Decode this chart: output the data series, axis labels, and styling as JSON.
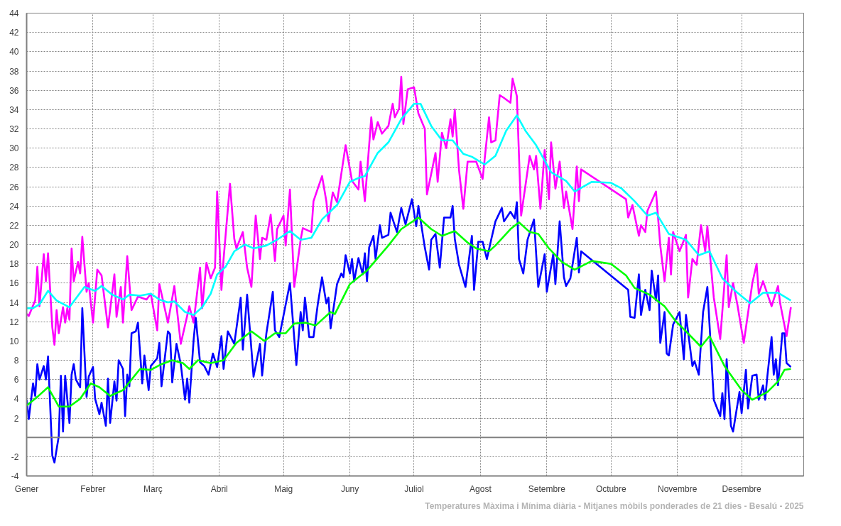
{
  "chart_data": {
    "type": "line",
    "title": "Temperatures Màxima i Mínima diària - Mitjanes mòbils ponderades de 21 dies - Besalú - 2025",
    "xlim": [
      "2025-01-01",
      "2025-12-30"
    ],
    "xticks": [
      {
        "value": "2025-01-01",
        "label": "Gener"
      },
      {
        "value": "2025-02-01",
        "label": "Febrer"
      },
      {
        "value": "2025-03-01",
        "label": "Març"
      },
      {
        "value": "2025-04-01",
        "label": "Abril"
      },
      {
        "value": "2025-05-01",
        "label": "Maig"
      },
      {
        "value": "2025-06-01",
        "label": "Juny"
      },
      {
        "value": "2025-07-01",
        "label": "Juliol"
      },
      {
        "value": "2025-08-01",
        "label": "Agost"
      },
      {
        "value": "2025-09-01",
        "label": "Setembre"
      },
      {
        "value": "2025-10-01",
        "label": "Octubre"
      },
      {
        "value": "2025-11-01",
        "label": "Novembre"
      },
      {
        "value": "2025-12-01",
        "label": "Desembre"
      }
    ],
    "ylim": [
      -4,
      44
    ],
    "yticks": [
      -4,
      -2,
      2,
      4,
      6,
      8,
      10,
      12,
      14,
      16,
      18,
      20,
      22,
      24,
      26,
      28,
      30,
      32,
      34,
      36,
      38,
      40,
      42,
      44
    ],
    "grid": true,
    "line_style": "solid",
    "ref_lines": [
      {
        "axis": "y",
        "value": 0
      }
    ],
    "series": [
      {
        "color": "#ff00ff",
        "x": [
          "2025-01-01",
          "2025-01-02",
          "2025-01-05",
          "2025-01-06",
          "2025-01-07",
          "2025-01-09",
          "2025-01-10",
          "2025-01-11",
          "2025-01-13",
          "2025-01-14",
          "2025-01-15",
          "2025-01-16",
          "2025-01-18",
          "2025-01-19",
          "2025-01-20",
          "2025-01-21",
          "2025-01-22",
          "2025-01-23",
          "2025-01-25",
          "2025-01-26",
          "2025-01-27",
          "2025-01-29",
          "2025-01-30",
          "2025-02-01",
          "2025-02-03",
          "2025-02-05",
          "2025-02-08",
          "2025-02-11",
          "2025-02-12",
          "2025-02-14",
          "2025-02-15",
          "2025-02-17",
          "2025-02-19",
          "2025-02-22",
          "2025-02-26",
          "2025-02-28",
          "2025-03-03",
          "2025-03-04",
          "2025-03-08",
          "2025-03-11",
          "2025-03-14",
          "2025-03-18",
          "2025-03-20",
          "2025-03-23",
          "2025-03-24",
          "2025-03-26",
          "2025-03-28",
          "2025-03-30",
          "2025-03-31",
          "2025-04-02",
          "2025-04-03",
          "2025-04-06",
          "2025-04-08",
          "2025-04-09",
          "2025-04-12",
          "2025-04-14",
          "2025-04-16",
          "2025-04-18",
          "2025-04-20",
          "2025-04-21",
          "2025-04-23",
          "2025-04-25",
          "2025-04-27",
          "2025-04-28",
          "2025-05-01",
          "2025-05-02",
          "2025-05-04",
          "2025-05-06",
          "2025-05-09",
          "2025-05-10",
          "2025-05-14",
          "2025-05-15",
          "2025-05-19",
          "2025-05-21",
          "2025-05-22",
          "2025-05-24",
          "2025-05-26",
          "2025-05-30",
          "2025-06-02",
          "2025-06-05",
          "2025-06-06",
          "2025-06-08",
          "2025-06-11",
          "2025-06-12",
          "2025-06-14",
          "2025-06-16",
          "2025-06-19",
          "2025-06-21",
          "2025-06-22",
          "2025-06-24",
          "2025-06-25",
          "2025-06-26",
          "2025-06-28",
          "2025-07-01",
          "2025-07-03",
          "2025-07-06",
          "2025-07-07",
          "2025-07-11",
          "2025-07-12",
          "2025-07-14",
          "2025-07-16",
          "2025-07-18",
          "2025-07-19",
          "2025-07-20",
          "2025-07-22",
          "2025-07-24",
          "2025-07-26",
          "2025-07-30",
          "2025-08-02",
          "2025-08-05",
          "2025-08-06",
          "2025-08-08",
          "2025-08-10",
          "2025-08-12",
          "2025-08-15",
          "2025-08-16",
          "2025-08-18",
          "2025-08-20",
          "2025-08-24",
          "2025-08-26",
          "2025-08-27",
          "2025-08-29",
          "2025-08-31",
          "2025-09-02",
          "2025-09-03",
          "2025-09-05",
          "2025-09-07",
          "2025-09-09",
          "2025-09-10",
          "2025-09-13",
          "2025-09-15",
          "2025-09-16",
          "2025-09-17",
          "2025-10-08",
          "2025-10-09",
          "2025-10-11",
          "2025-10-14",
          "2025-10-15",
          "2025-10-17",
          "2025-10-18",
          "2025-10-22",
          "2025-10-24",
          "2025-10-26",
          "2025-10-28",
          "2025-10-29",
          "2025-10-30",
          "2025-11-02",
          "2025-11-05",
          "2025-11-06",
          "2025-11-08",
          "2025-11-10",
          "2025-11-12",
          "2025-11-14",
          "2025-11-15",
          "2025-11-18",
          "2025-11-21",
          "2025-11-24",
          "2025-11-25",
          "2025-11-27",
          "2025-11-29",
          "2025-12-02",
          "2025-12-06",
          "2025-12-08",
          "2025-12-09",
          "2025-12-11",
          "2025-12-15",
          "2025-12-18",
          "2025-12-19",
          "2025-12-22",
          "2025-12-24"
        ],
        "values": [
          12.8,
          12.6,
          14.2,
          17.7,
          13.6,
          19.0,
          16.2,
          19.1,
          11.4,
          9.6,
          13.2,
          10.8,
          13.5,
          11.9,
          13.4,
          12.2,
          19.6,
          16.2,
          18.2,
          17.0,
          20.8,
          15.1,
          16.0,
          11.9,
          17.4,
          16.8,
          11.4,
          16.9,
          12.5,
          15.6,
          11.9,
          18.8,
          13.2,
          14.6,
          14.3,
          14.9,
          11.1,
          15.9,
          11.9,
          15.7,
          9.7,
          13.6,
          11.9,
          17.6,
          13.4,
          18.1,
          16.5,
          17.6,
          25.5,
          15.3,
          18.5,
          26.3,
          20.6,
          19.6,
          21.3,
          17.6,
          15.6,
          23.0,
          18.5,
          20.7,
          20.5,
          23.1,
          18.3,
          21.6,
          23.0,
          19.9,
          25.7,
          15.6,
          20.5,
          21.7,
          21.3,
          24.5,
          27.1,
          24.5,
          22.4,
          25.4,
          24.4,
          30.3,
          26.6,
          25.7,
          28.6,
          24.5,
          33.2,
          30.9,
          32.7,
          31.5,
          32.3,
          34.6,
          33.2,
          34.1,
          37.4,
          32.5,
          36.1,
          36.3,
          33.6,
          32.0,
          25.2,
          29.5,
          26.5,
          31.6,
          30.0,
          33.0,
          31.2,
          34.0,
          27.7,
          23.7,
          28.6,
          28.6,
          26.8,
          33.2,
          30.6,
          30.8,
          35.5,
          35.2,
          34.7,
          37.2,
          35.4,
          23.0,
          29.2,
          27.8,
          29.2,
          23.7,
          29.8,
          24.7,
          30.6,
          25.8,
          28.6,
          23.8,
          25.5,
          21.6,
          28.1,
          24.5,
          27.8,
          24.7,
          22.8,
          24.1,
          20.9,
          22.0,
          21.3,
          23.5,
          25.5,
          19.9,
          16.2,
          20.7,
          16.9,
          21.3,
          19.3,
          21.0,
          14.5,
          18.5,
          17.9,
          22.0,
          19.3,
          21.9,
          14.5,
          10.2,
          18.9,
          13.5,
          16.0,
          13.8,
          9.8,
          16.0,
          18.0,
          14.9,
          16.2,
          13.6,
          15.7,
          13.9,
          10.5,
          13.5
        ]
      },
      {
        "color": "#0000ff",
        "x": [
          "2025-01-01",
          "2025-01-02",
          "2025-01-04",
          "2025-01-05",
          "2025-01-06",
          "2025-01-07",
          "2025-01-09",
          "2025-01-10",
          "2025-01-11",
          "2025-01-13",
          "2025-01-14",
          "2025-01-16",
          "2025-01-17",
          "2025-01-18",
          "2025-01-19",
          "2025-01-21",
          "2025-01-22",
          "2025-01-23",
          "2025-01-24",
          "2025-01-26",
          "2025-01-27",
          "2025-01-29",
          "2025-01-30",
          "2025-02-01",
          "2025-02-02",
          "2025-02-04",
          "2025-02-05",
          "2025-02-07",
          "2025-02-08",
          "2025-02-09",
          "2025-02-11",
          "2025-02-12",
          "2025-02-13",
          "2025-02-15",
          "2025-02-16",
          "2025-02-17",
          "2025-02-18",
          "2025-02-19",
          "2025-02-21",
          "2025-02-22",
          "2025-02-24",
          "2025-02-25",
          "2025-02-27",
          "2025-02-28",
          "2025-03-03",
          "2025-03-04",
          "2025-03-05",
          "2025-03-08",
          "2025-03-09",
          "2025-03-10",
          "2025-03-12",
          "2025-03-14",
          "2025-03-16",
          "2025-03-17",
          "2025-03-18",
          "2025-03-20",
          "2025-03-21",
          "2025-03-23",
          "2025-03-25",
          "2025-03-27",
          "2025-03-29",
          "2025-03-31",
          "2025-04-02",
          "2025-04-03",
          "2025-04-05",
          "2025-04-08",
          "2025-04-11",
          "2025-04-12",
          "2025-04-14",
          "2025-04-17",
          "2025-04-20",
          "2025-04-21",
          "2025-04-23",
          "2025-04-26",
          "2025-04-27",
          "2025-04-29",
          "2025-05-04",
          "2025-05-07",
          "2025-05-09",
          "2025-05-10",
          "2025-05-11",
          "2025-05-13",
          "2025-05-15",
          "2025-05-17",
          "2025-05-19",
          "2025-05-21",
          "2025-05-22",
          "2025-05-23",
          "2025-05-26",
          "2025-05-28",
          "2025-05-29",
          "2025-05-30",
          "2025-06-01",
          "2025-06-02",
          "2025-06-03",
          "2025-06-05",
          "2025-06-07",
          "2025-06-08",
          "2025-06-09",
          "2025-06-10",
          "2025-06-12",
          "2025-06-13",
          "2025-06-15",
          "2025-06-16",
          "2025-06-19",
          "2025-06-20",
          "2025-06-23",
          "2025-06-25",
          "2025-06-27",
          "2025-06-30",
          "2025-07-02",
          "2025-07-03",
          "2025-07-06",
          "2025-07-08",
          "2025-07-09",
          "2025-07-11",
          "2025-07-13",
          "2025-07-15",
          "2025-07-18",
          "2025-07-19",
          "2025-07-20",
          "2025-07-22",
          "2025-07-25",
          "2025-07-28",
          "2025-07-29",
          "2025-07-31",
          "2025-08-02",
          "2025-08-04",
          "2025-08-06",
          "2025-08-08",
          "2025-08-11",
          "2025-08-12",
          "2025-08-15",
          "2025-08-17",
          "2025-08-18",
          "2025-08-19",
          "2025-08-21",
          "2025-08-23",
          "2025-08-26",
          "2025-08-28",
          "2025-08-31",
          "2025-09-01",
          "2025-09-04",
          "2025-09-05",
          "2025-09-07",
          "2025-09-09",
          "2025-09-10",
          "2025-09-12",
          "2025-09-15",
          "2025-09-16",
          "2025-09-17",
          "2025-10-09",
          "2025-10-10",
          "2025-10-12",
          "2025-10-14",
          "2025-10-15",
          "2025-10-17",
          "2025-10-19",
          "2025-10-20",
          "2025-10-22",
          "2025-10-23",
          "2025-10-24",
          "2025-10-26",
          "2025-10-27",
          "2025-10-28",
          "2025-10-30",
          "2025-11-02",
          "2025-11-04",
          "2025-11-05",
          "2025-11-08",
          "2025-11-09",
          "2025-11-11",
          "2025-11-13",
          "2025-11-15",
          "2025-11-18",
          "2025-11-21",
          "2025-11-22",
          "2025-11-23",
          "2025-11-24",
          "2025-11-26",
          "2025-11-27",
          "2025-11-30",
          "2025-12-01",
          "2025-12-03",
          "2025-12-04",
          "2025-12-06",
          "2025-12-08",
          "2025-12-09",
          "2025-12-11",
          "2025-12-12",
          "2025-12-13",
          "2025-12-15",
          "2025-12-16",
          "2025-12-17",
          "2025-12-18",
          "2025-12-20",
          "2025-12-21",
          "2025-12-22",
          "2025-12-24"
        ],
        "values": [
          3.9,
          1.9,
          5.6,
          4.3,
          7.6,
          6.0,
          7.4,
          6.0,
          8.4,
          -1.9,
          -2.6,
          0.1,
          6.4,
          0.6,
          6.4,
          1.5,
          6.5,
          7.6,
          6.0,
          5.2,
          13.4,
          4.2,
          6.3,
          7.3,
          4.0,
          2.4,
          3.6,
          1.2,
          6.1,
          1.5,
          5.8,
          3.8,
          8.0,
          7.1,
          2.2,
          6.5,
          5.3,
          10.8,
          11.0,
          11.9,
          5.6,
          8.5,
          4.9,
          7.4,
          8.2,
          9.8,
          5.3,
          11.0,
          10.7,
          5.7,
          9.7,
          7.6,
          3.9,
          6.1,
          3.6,
          10.1,
          12.4,
          7.8,
          7.4,
          6.5,
          8.7,
          7.3,
          10.5,
          7.1,
          11.0,
          9.7,
          14.5,
          9.1,
          14.8,
          6.3,
          9.7,
          6.4,
          10.8,
          15.1,
          11.1,
          10.4,
          16.0,
          7.5,
          13.0,
          11.1,
          14.5,
          10.4,
          10.4,
          13.8,
          16.6,
          13.9,
          14.5,
          11.3,
          15.9,
          17.0,
          16.6,
          18.9,
          17.0,
          18.5,
          16.2,
          18.6,
          16.9,
          19.1,
          16.2,
          19.7,
          20.9,
          18.5,
          22.0,
          20.7,
          21.0,
          23.3,
          21.3,
          23.8,
          22.1,
          24.7,
          21.9,
          24.0,
          19.7,
          17.4,
          20.5,
          21.1,
          17.6,
          22.8,
          22.8,
          24.0,
          20.6,
          17.9,
          15.6,
          20.9,
          15.3,
          20.3,
          20.3,
          18.5,
          20.5,
          22.4,
          23.8,
          22.4,
          23.4,
          22.7,
          24.4,
          18.5,
          17.0,
          20.5,
          22.6,
          15.6,
          19.0,
          15.1,
          19.0,
          15.9,
          22.4,
          16.6,
          15.7,
          16.5,
          20.7,
          17.1,
          19.3,
          15.3,
          12.5,
          12.4,
          16.9,
          12.7,
          15.3,
          13.2,
          17.3,
          14.2,
          16.8,
          9.8,
          13.0,
          8.7,
          8.5,
          11.7,
          13.0,
          8.1,
          12.7,
          7.4,
          7.9,
          6.5,
          13.0,
          15.6,
          3.9,
          2.2,
          4.6,
          1.9,
          8.1,
          1.2,
          0.6,
          4.7,
          2.5,
          7.0,
          3.0,
          6.4,
          6.5,
          3.9,
          5.4,
          3.9,
          6.3,
          10.4,
          6.5,
          8.1,
          5.4,
          10.8,
          10.8,
          7.7,
          7.3
        ]
      },
      {
        "color": "#00ffff",
        "x": [
          "2025-01-01",
          "2025-01-04",
          "2025-01-07",
          "2025-01-11",
          "2025-01-15",
          "2025-01-21",
          "2025-01-28",
          "2025-02-02",
          "2025-02-05",
          "2025-02-10",
          "2025-02-15",
          "2025-02-18",
          "2025-02-23",
          "2025-02-28",
          "2025-03-04",
          "2025-03-08",
          "2025-03-11",
          "2025-03-16",
          "2025-03-20",
          "2025-03-24",
          "2025-03-28",
          "2025-03-31",
          "2025-04-04",
          "2025-04-08",
          "2025-04-13",
          "2025-04-17",
          "2025-04-23",
          "2025-04-28",
          "2025-05-04",
          "2025-05-09",
          "2025-05-14",
          "2025-05-19",
          "2025-05-26",
          "2025-06-01",
          "2025-06-05",
          "2025-06-08",
          "2025-06-14",
          "2025-06-19",
          "2025-06-25",
          "2025-07-01",
          "2025-07-04",
          "2025-07-09",
          "2025-07-14",
          "2025-07-19",
          "2025-07-24",
          "2025-07-28",
          "2025-08-03",
          "2025-08-08",
          "2025-08-13",
          "2025-08-18",
          "2025-08-22",
          "2025-08-27",
          "2025-09-03",
          "2025-09-10",
          "2025-09-14",
          "2025-09-22",
          "2025-10-01",
          "2025-10-06",
          "2025-10-12",
          "2025-10-18",
          "2025-10-22",
          "2025-10-28",
          "2025-11-05",
          "2025-11-11",
          "2025-11-16",
          "2025-11-22",
          "2025-11-28",
          "2025-12-05",
          "2025-12-11",
          "2025-12-18",
          "2025-12-24"
        ],
        "values": [
          13.4,
          13.4,
          13.8,
          15.2,
          14.2,
          13.5,
          15.6,
          15.2,
          15.7,
          14.8,
          14.3,
          14.8,
          14.7,
          14.9,
          14.3,
          14.0,
          14.1,
          13.0,
          12.7,
          13.5,
          14.9,
          16.9,
          17.7,
          19.3,
          20.0,
          19.6,
          19.9,
          20.5,
          21.4,
          20.5,
          20.7,
          22.6,
          24.1,
          26.5,
          26.9,
          27.1,
          29.5,
          30.6,
          33.0,
          34.6,
          34.6,
          32.3,
          30.8,
          30.8,
          29.4,
          29.1,
          28.3,
          29.2,
          31.8,
          33.4,
          31.8,
          30.3,
          27.5,
          26.6,
          25.5,
          26.5,
          26.4,
          25.8,
          24.5,
          23.0,
          23.3,
          21.1,
          20.5,
          18.9,
          19.3,
          16.5,
          15.2,
          13.9,
          15.0,
          15.0,
          14.2
        ]
      },
      {
        "color": "#00ff00",
        "x": [
          "2025-01-01",
          "2025-01-06",
          "2025-01-11",
          "2025-01-16",
          "2025-01-21",
          "2025-01-26",
          "2025-01-31",
          "2025-02-04",
          "2025-02-09",
          "2025-02-15",
          "2025-02-23",
          "2025-02-28",
          "2025-03-05",
          "2025-03-10",
          "2025-03-15",
          "2025-03-18",
          "2025-03-22",
          "2025-03-28",
          "2025-04-03",
          "2025-04-09",
          "2025-04-16",
          "2025-04-22",
          "2025-04-27",
          "2025-05-02",
          "2025-05-06",
          "2025-05-11",
          "2025-05-16",
          "2025-05-23",
          "2025-05-25",
          "2025-06-01",
          "2025-06-09",
          "2025-06-19",
          "2025-06-25",
          "2025-07-03",
          "2025-07-09",
          "2025-07-14",
          "2025-07-20",
          "2025-07-26",
          "2025-07-30",
          "2025-08-05",
          "2025-08-08",
          "2025-08-15",
          "2025-08-19",
          "2025-08-24",
          "2025-08-28",
          "2025-09-02",
          "2025-09-08",
          "2025-09-14",
          "2025-09-22",
          "2025-10-01",
          "2025-10-08",
          "2025-10-12",
          "2025-10-19",
          "2025-10-26",
          "2025-10-31",
          "2025-11-05",
          "2025-11-12",
          "2025-11-16",
          "2025-11-23",
          "2025-12-01",
          "2025-12-06",
          "2025-12-13",
          "2025-12-18",
          "2025-12-21",
          "2025-12-24"
        ],
        "values": [
          3.3,
          4.2,
          5.2,
          3.2,
          3.2,
          4.0,
          5.6,
          5.2,
          4.3,
          4.9,
          7.1,
          7.0,
          7.6,
          8.0,
          7.7,
          7.1,
          8.0,
          7.7,
          8.0,
          9.8,
          11.0,
          10.0,
          10.8,
          10.8,
          11.8,
          11.9,
          11.6,
          13.0,
          12.8,
          15.9,
          17.3,
          19.9,
          21.6,
          22.8,
          21.6,
          20.9,
          21.4,
          20.2,
          19.6,
          19.3,
          19.9,
          21.6,
          22.3,
          21.3,
          21.1,
          19.6,
          18.2,
          17.4,
          18.3,
          18.0,
          16.8,
          15.5,
          14.8,
          13.6,
          12.1,
          11.0,
          9.4,
          10.5,
          7.4,
          4.9,
          3.9,
          4.7,
          5.8,
          7.0,
          7.1
        ]
      }
    ]
  }
}
